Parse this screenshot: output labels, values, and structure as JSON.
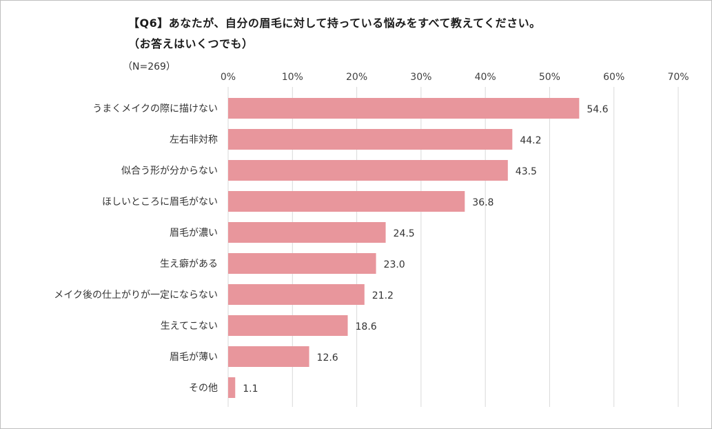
{
  "chart_data": {
    "type": "bar",
    "orientation": "horizontal",
    "title": "【Q6】あなたが、自分の眉毛に対して持っている悩みをすべて教えてください。",
    "subtitle": "（お答えはいくつでも）",
    "sample_note": "（N=269）",
    "categories": [
      "うまくメイクの際に描けない",
      "左右非対称",
      "似合う形が分からない",
      "ほしいところに眉毛がない",
      "眉毛が濃い",
      "生え癖がある",
      "メイク後の仕上がりが一定にならない",
      "生えてこない",
      "眉毛が薄い",
      "その他"
    ],
    "values": [
      54.6,
      44.2,
      43.5,
      36.8,
      24.5,
      23.0,
      21.2,
      18.6,
      12.6,
      1.1
    ],
    "value_labels": [
      "54.6",
      "44.2",
      "43.5",
      "36.8",
      "24.5",
      "23.0",
      "21.2",
      "18.6",
      "12.6",
      "1.1"
    ],
    "xlim": [
      0,
      70
    ],
    "x_ticks": [
      0,
      10,
      20,
      30,
      40,
      50,
      60,
      70
    ],
    "x_tick_labels": [
      "0%",
      "10%",
      "20%",
      "30%",
      "40%",
      "50%",
      "60%",
      "70%"
    ],
    "x_axis_position": "top",
    "grid": true,
    "bar_color": "#e8969c",
    "grid_color": "#d9d9d9"
  }
}
